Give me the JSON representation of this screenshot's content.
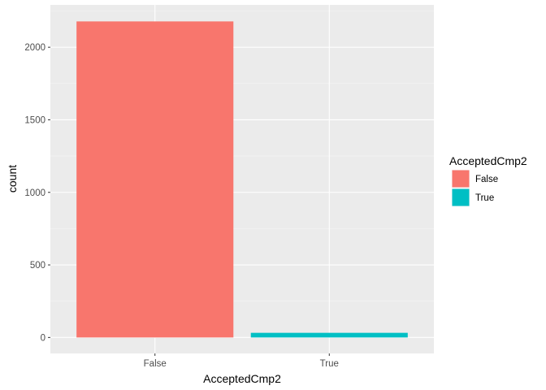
{
  "chart_data": {
    "type": "bar",
    "categories": [
      "False",
      "True"
    ],
    "values": [
      2178,
      32
    ],
    "colors": [
      "#F8766D",
      "#00BFC4"
    ],
    "xlabel": "AcceptedCmp2",
    "ylabel": "count",
    "ylim": [
      0,
      2300
    ],
    "yticks": [
      0,
      500,
      1000,
      1500,
      2000
    ],
    "grid": true,
    "legend": {
      "title": "AcceptedCmp2",
      "placement": "right",
      "entries": [
        {
          "label": "False",
          "color": "#F8766D"
        },
        {
          "label": "True",
          "color": "#00BFC4"
        }
      ]
    }
  }
}
